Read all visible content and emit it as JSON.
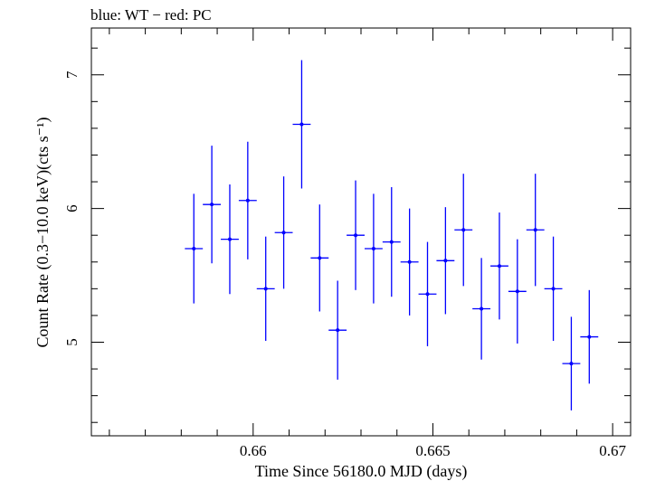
{
  "chart_data": {
    "type": "scatter",
    "title": "blue: WT − red: PC",
    "xlabel": "Time Since 56180.0 MJD (days)",
    "ylabel": "Count Rate (0.3−10.0 keV)(cts s⁻¹)",
    "xlim": [
      0.6555,
      0.6705
    ],
    "ylim": [
      4.3,
      7.35
    ],
    "x_major_ticks": [
      0.66,
      0.665,
      0.67
    ],
    "x_tick_labels": [
      "0.66",
      "0.665",
      "0.67"
    ],
    "x_minor_step": 0.001,
    "y_major_ticks": [
      5,
      6,
      7
    ],
    "y_tick_labels": [
      "5",
      "6",
      "7"
    ],
    "y_minor_step": 0.2,
    "grid": false,
    "legend": "none",
    "series": [
      {
        "color": "#0000ff",
        "points": [
          {
            "x": 0.65835,
            "xerr": 0.00025,
            "y": 5.7,
            "yerr": 0.41
          },
          {
            "x": 0.65885,
            "xerr": 0.00025,
            "y": 6.03,
            "yerr": 0.44
          },
          {
            "x": 0.65935,
            "xerr": 0.00025,
            "y": 5.77,
            "yerr": 0.41
          },
          {
            "x": 0.65985,
            "xerr": 0.00025,
            "y": 6.06,
            "yerr": 0.44
          },
          {
            "x": 0.66035,
            "xerr": 0.00025,
            "y": 5.4,
            "yerr": 0.39
          },
          {
            "x": 0.66085,
            "xerr": 0.00025,
            "y": 5.82,
            "yerr": 0.42
          },
          {
            "x": 0.66135,
            "xerr": 0.00025,
            "y": 6.63,
            "yerr": 0.48
          },
          {
            "x": 0.66185,
            "xerr": 0.00025,
            "y": 5.63,
            "yerr": 0.4
          },
          {
            "x": 0.66235,
            "xerr": 0.00025,
            "y": 5.09,
            "yerr": 0.37
          },
          {
            "x": 0.66285,
            "xerr": 0.00025,
            "y": 5.8,
            "yerr": 0.41
          },
          {
            "x": 0.66335,
            "xerr": 0.00025,
            "y": 5.7,
            "yerr": 0.41
          },
          {
            "x": 0.66385,
            "xerr": 0.00025,
            "y": 5.75,
            "yerr": 0.41
          },
          {
            "x": 0.66435,
            "xerr": 0.00025,
            "y": 5.6,
            "yerr": 0.4
          },
          {
            "x": 0.66485,
            "xerr": 0.00025,
            "y": 5.36,
            "yerr": 0.39
          },
          {
            "x": 0.66535,
            "xerr": 0.00025,
            "y": 5.61,
            "yerr": 0.4
          },
          {
            "x": 0.66585,
            "xerr": 0.00025,
            "y": 5.84,
            "yerr": 0.42
          },
          {
            "x": 0.66635,
            "xerr": 0.00025,
            "y": 5.25,
            "yerr": 0.38
          },
          {
            "x": 0.66685,
            "xerr": 0.00025,
            "y": 5.57,
            "yerr": 0.4
          },
          {
            "x": 0.66735,
            "xerr": 0.00025,
            "y": 5.38,
            "yerr": 0.39
          },
          {
            "x": 0.66785,
            "xerr": 0.00025,
            "y": 5.84,
            "yerr": 0.42
          },
          {
            "x": 0.66835,
            "xerr": 0.00025,
            "y": 5.4,
            "yerr": 0.39
          },
          {
            "x": 0.66885,
            "xerr": 0.00025,
            "y": 4.84,
            "yerr": 0.35
          },
          {
            "x": 0.66935,
            "xerr": 0.00025,
            "y": 5.04,
            "yerr": 0.35
          }
        ]
      }
    ]
  }
}
